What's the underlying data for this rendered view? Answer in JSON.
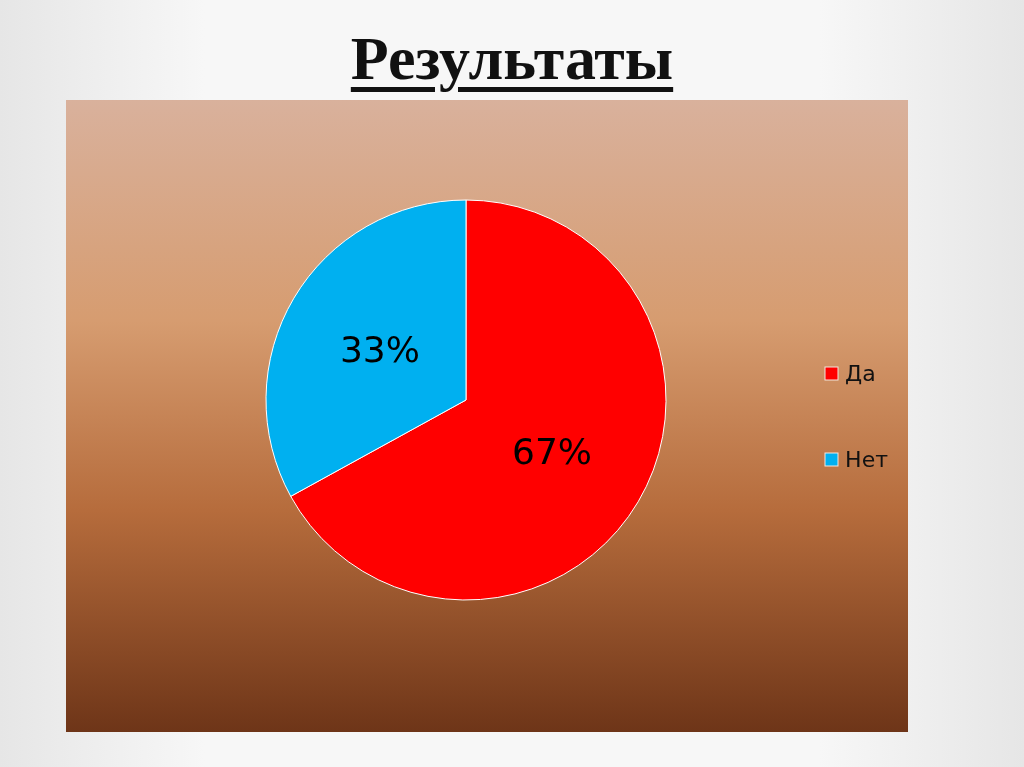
{
  "chart_data": {
    "type": "pie",
    "title": "Результаты",
    "categories": [
      "Да",
      "Нет"
    ],
    "values": [
      67,
      33
    ],
    "colors": [
      "#ff0000",
      "#00b0f0"
    ],
    "value_labels": [
      "67%",
      "33%"
    ],
    "legend": "right"
  }
}
